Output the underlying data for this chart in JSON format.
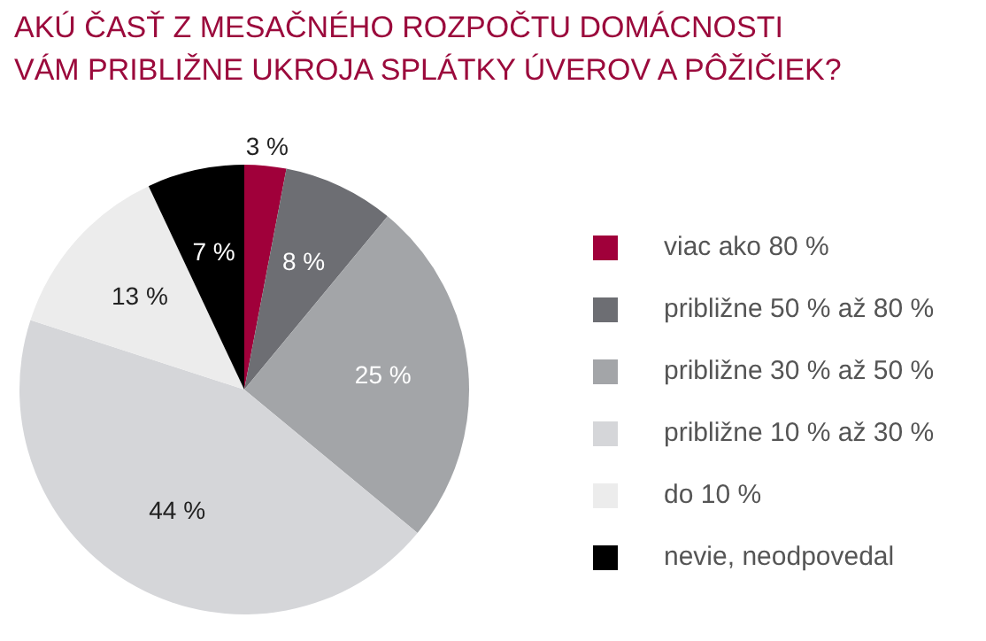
{
  "chart_data": {
    "type": "pie",
    "title": "AKÚ ČASŤ Z MESAČNÉHO ROZPOČTU DOMÁCNOSTI\nVÁM PRIBLIŽNE UKROJA SPLÁTKY ÚVEROV A PÔŽIČIEK?",
    "categories": [
      "viac ako 80 %",
      "približne 50 % až 80 %",
      "približne 30 % až 50 %",
      "približne 10 % až 30 %",
      "do 10 %",
      "nevie, neodpovedal"
    ],
    "values": [
      3,
      8,
      25,
      44,
      13,
      7
    ],
    "colors": [
      "#a0003a",
      "#6d6e73",
      "#a3a5a8",
      "#d5d6d9",
      "#ececec",
      "#000000"
    ],
    "value_labels": [
      "3 %",
      "8 %",
      "25 %",
      "44 %",
      "13 %",
      "7 %"
    ],
    "legend": "right"
  }
}
